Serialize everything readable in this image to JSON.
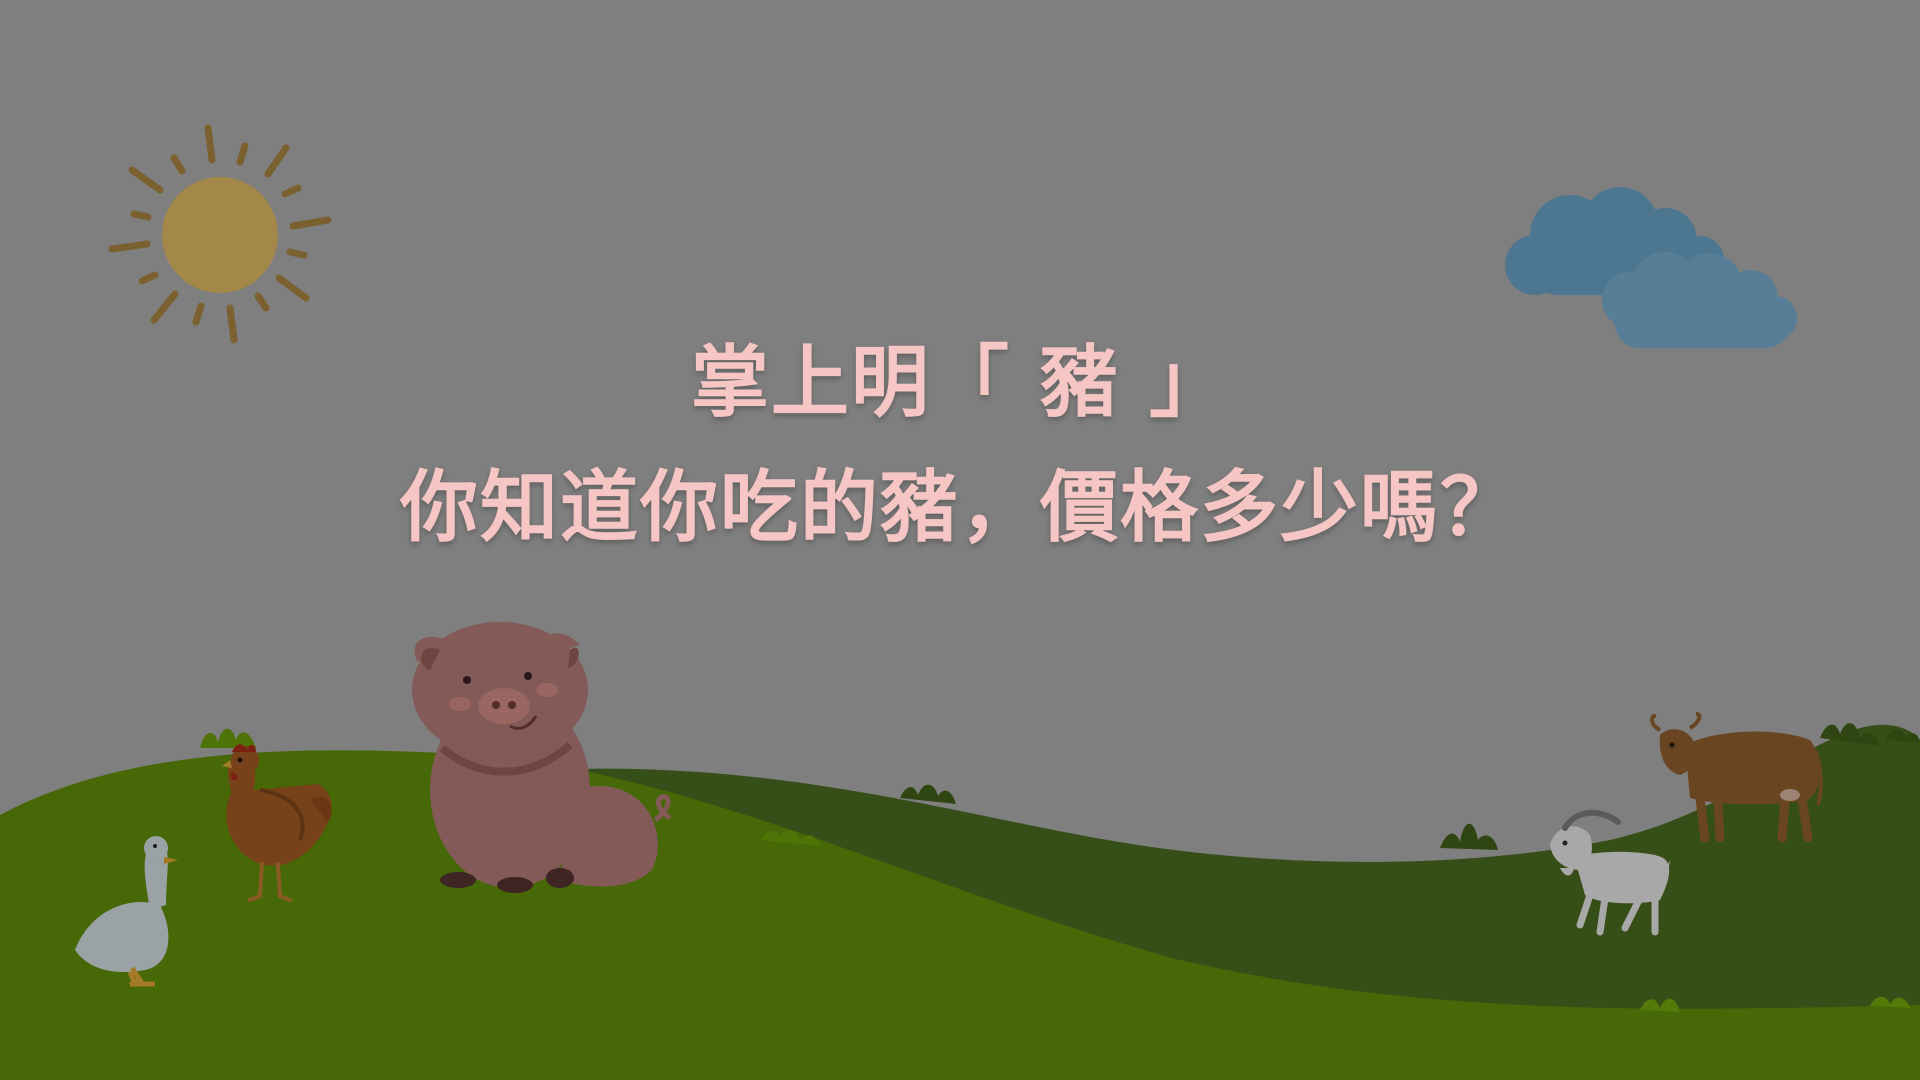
{
  "slide": {
    "title_line_1": "掌上明「 豬 」",
    "title_line_2": "你知道你吃的豬，價格多少嗎？"
  },
  "colors": {
    "background": "#7f7f7f",
    "title_text": "#f6c6c4",
    "hill_front": "#466806",
    "hill_back": "#364f18",
    "sun": "#a3884a",
    "sun_rays": "#7b6130",
    "cloud_front": "#587d97",
    "cloud_back": "#4d7691",
    "pig": "#835a57"
  },
  "icons": [
    "sun-icon",
    "cloud-icon",
    "pig-icon",
    "chicken-icon",
    "goose-icon",
    "goat-icon",
    "cow-icon"
  ]
}
